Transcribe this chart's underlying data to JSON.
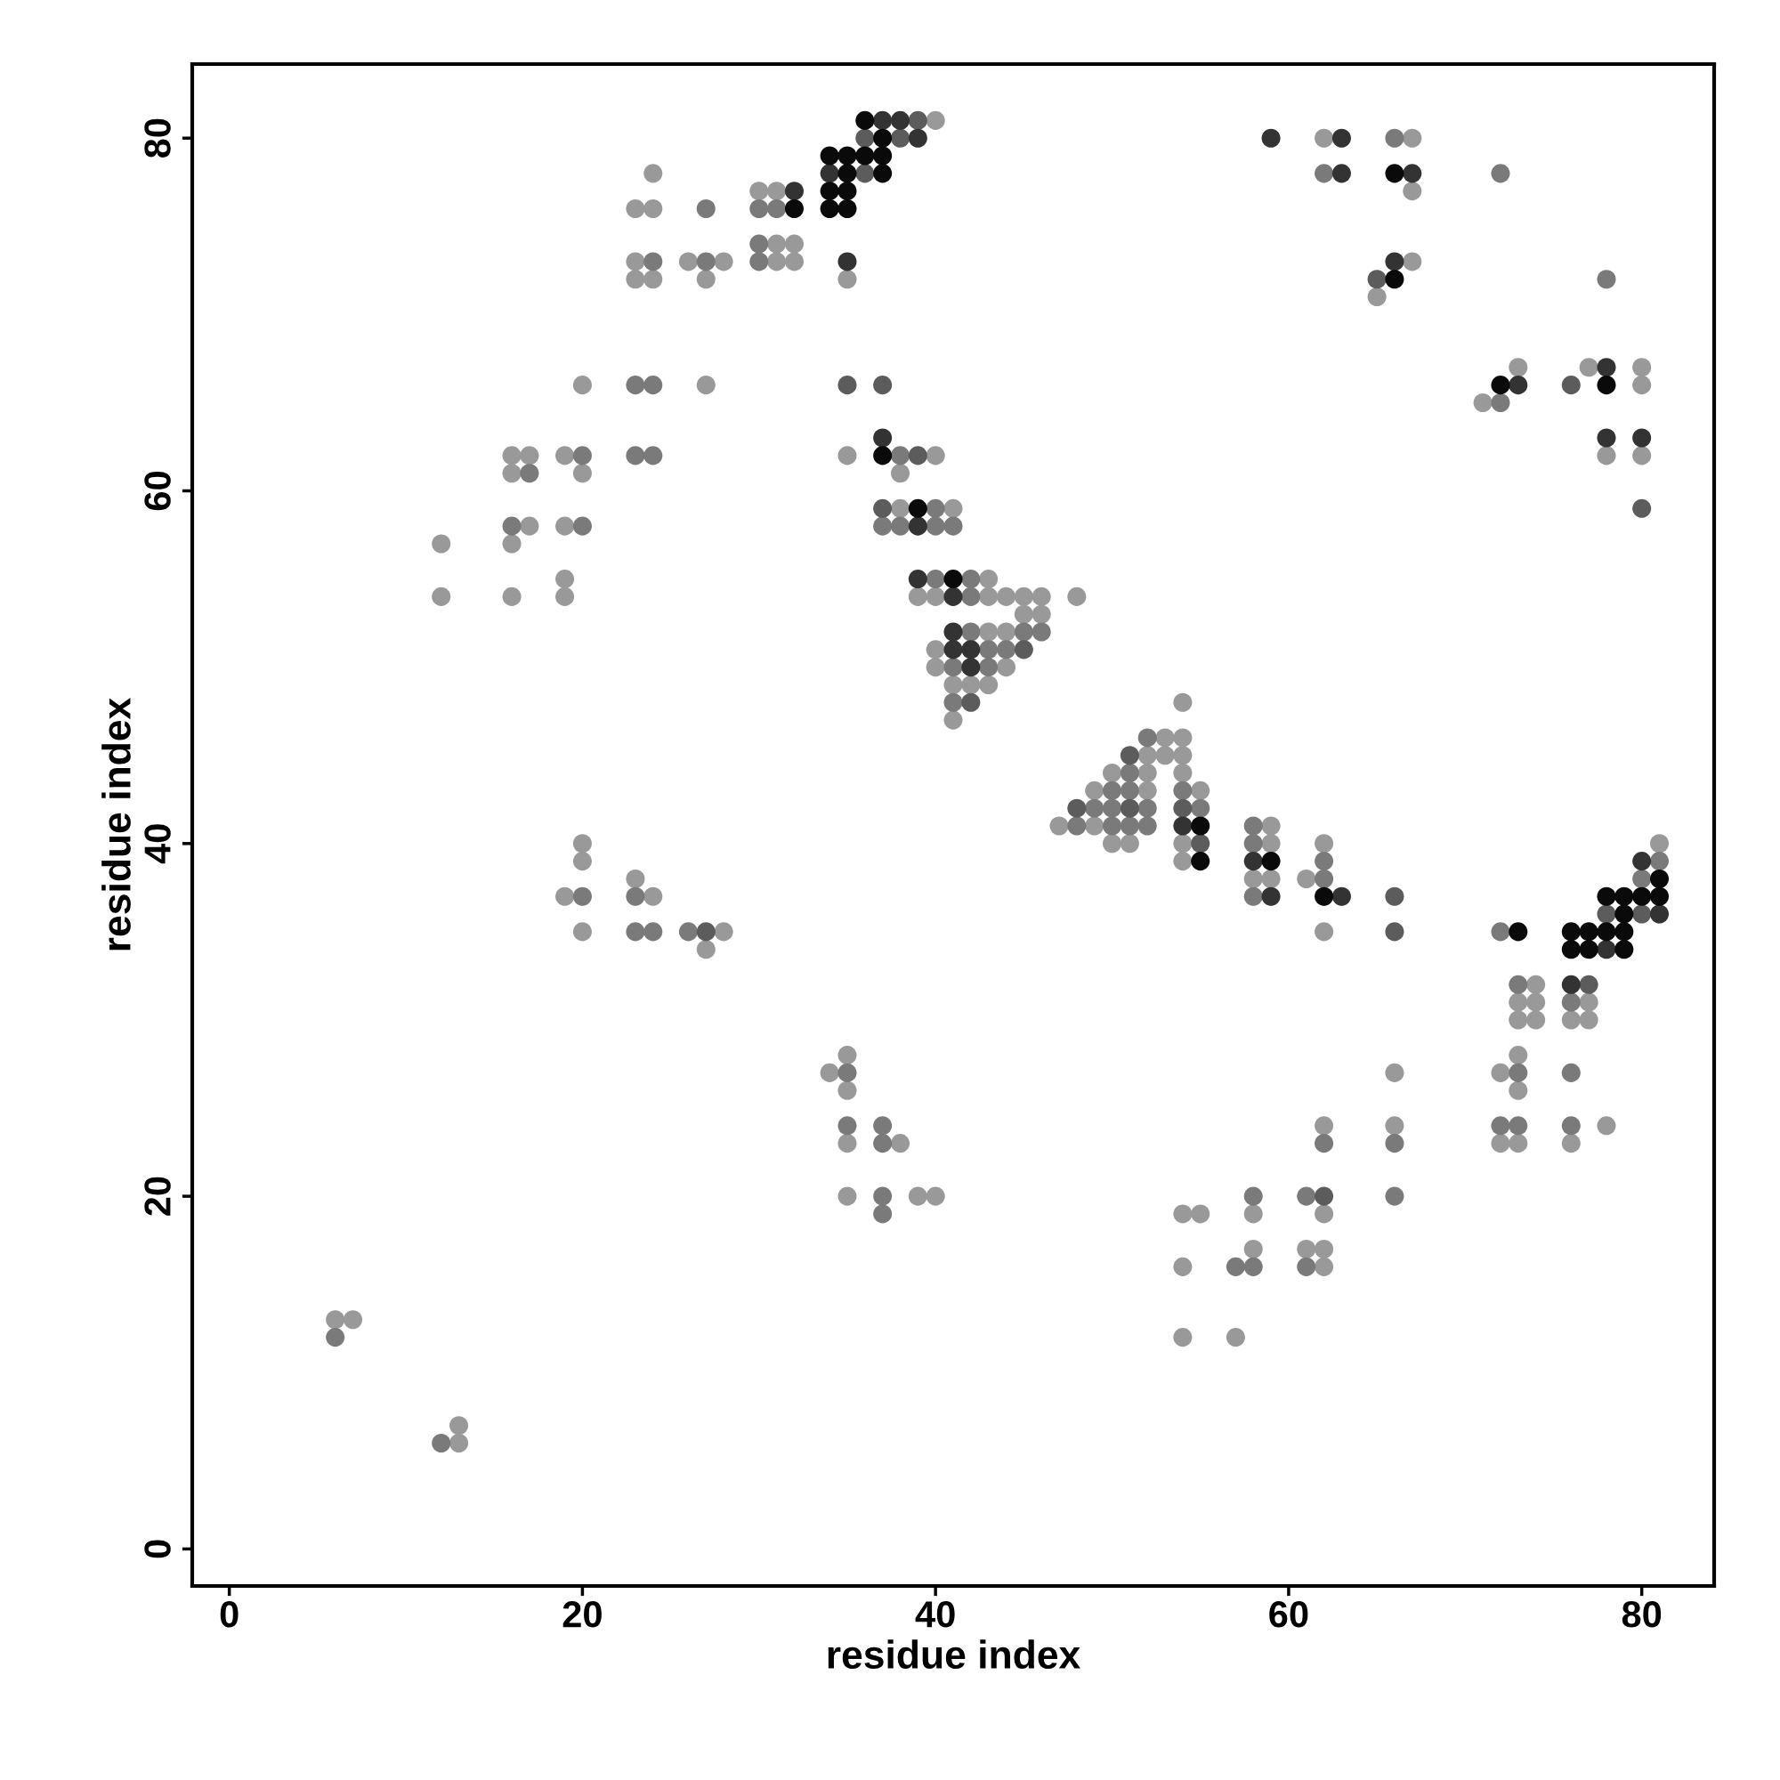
{
  "chart_data": {
    "type": "scatter",
    "xlabel": "residue index",
    "ylabel": "residue index",
    "xlim": [
      -2.1,
      84.1
    ],
    "ylim": [
      -2.1,
      84.2
    ],
    "xticks": [
      0,
      20,
      40,
      60,
      80
    ],
    "yticks": [
      0,
      20,
      40,
      60,
      80
    ],
    "marker": "circle",
    "grid": false,
    "legend": false,
    "series": [
      {
        "color": "#999999",
        "x": [
          40,
          62,
          67,
          24,
          30,
          31,
          67,
          23,
          24,
          31,
          32,
          23,
          26,
          28,
          31,
          32,
          67,
          23,
          24,
          27,
          35,
          65,
          73,
          77,
          80,
          20,
          27,
          80,
          71,
          16,
          17,
          19,
          35,
          40,
          78,
          80,
          16,
          20,
          38,
          38,
          41,
          17,
          19,
          12,
          16,
          19,
          43,
          12,
          16,
          19,
          39,
          40,
          43,
          44,
          45,
          46,
          48,
          45,
          46,
          43,
          44,
          40,
          40,
          44,
          41,
          42,
          43,
          54,
          41,
          53,
          54,
          52,
          53,
          54,
          50,
          52,
          54,
          49,
          52,
          55,
          47,
          49,
          59,
          20,
          50,
          51,
          54,
          59,
          62,
          81,
          20,
          54,
          23,
          58,
          59,
          61,
          19,
          24,
          20,
          28,
          62,
          27,
          74,
          73,
          74,
          77,
          73,
          74,
          76,
          77,
          35,
          73,
          34,
          66,
          72,
          35,
          73,
          62,
          66,
          78,
          35,
          38,
          72,
          73,
          76,
          35,
          39,
          40,
          54,
          55,
          58,
          62,
          58,
          61,
          62,
          54,
          62,
          6,
          7,
          54,
          57,
          13,
          13
        ],
        "values": [
          81,
          80,
          80,
          78,
          77,
          77,
          77,
          76,
          76,
          74,
          74,
          73,
          73,
          73,
          73,
          73,
          73,
          72,
          72,
          72,
          72,
          71,
          67,
          67,
          67,
          66,
          66,
          66,
          65,
          62,
          62,
          62,
          62,
          62,
          62,
          62,
          61,
          61,
          61,
          59,
          59,
          58,
          58,
          57,
          57,
          55,
          55,
          54,
          54,
          54,
          54,
          54,
          54,
          54,
          54,
          54,
          54,
          53,
          53,
          52,
          52,
          51,
          50,
          50,
          49,
          49,
          49,
          48,
          47,
          46,
          46,
          45,
          45,
          45,
          44,
          44,
          44,
          43,
          43,
          43,
          41,
          41,
          41,
          40,
          40,
          40,
          40,
          40,
          40,
          40,
          39,
          39,
          38,
          38,
          38,
          38,
          37,
          37,
          35,
          35,
          35,
          34,
          32,
          31,
          31,
          31,
          30,
          30,
          30,
          30,
          28,
          28,
          27,
          27,
          27,
          26,
          26,
          24,
          24,
          24,
          23,
          23,
          23,
          23,
          23,
          20,
          20,
          20,
          19,
          19,
          19,
          19,
          17,
          17,
          17,
          16,
          16,
          13,
          13,
          12,
          12,
          7,
          6
        ]
      },
      {
        "color": "#7a7a7a",
        "x": [
          66,
          62,
          72,
          27,
          30,
          31,
          30,
          24,
          27,
          30,
          78,
          23,
          24,
          72,
          20,
          23,
          24,
          38,
          17,
          40,
          16,
          20,
          37,
          38,
          40,
          41,
          40,
          42,
          42,
          42,
          45,
          46,
          43,
          44,
          41,
          43,
          41,
          52,
          51,
          50,
          51,
          54,
          49,
          50,
          52,
          55,
          48,
          50,
          51,
          52,
          58,
          58,
          62,
          81,
          62,
          80,
          20,
          23,
          58,
          23,
          24,
          26,
          72,
          73,
          76,
          35,
          73,
          76,
          35,
          37,
          72,
          73,
          76,
          37,
          62,
          66,
          37,
          58,
          61,
          66,
          37,
          57,
          58,
          61,
          6,
          12
        ],
        "values": [
          80,
          78,
          78,
          76,
          76,
          76,
          74,
          73,
          73,
          73,
          72,
          66,
          66,
          65,
          62,
          62,
          62,
          62,
          61,
          59,
          58,
          58,
          58,
          58,
          58,
          58,
          55,
          55,
          54,
          52,
          52,
          52,
          51,
          51,
          50,
          50,
          48,
          46,
          44,
          43,
          43,
          43,
          42,
          42,
          42,
          42,
          41,
          41,
          41,
          41,
          41,
          40,
          39,
          39,
          38,
          38,
          37,
          37,
          37,
          35,
          35,
          35,
          35,
          32,
          31,
          27,
          27,
          27,
          24,
          24,
          24,
          24,
          24,
          23,
          23,
          23,
          20,
          20,
          20,
          20,
          19,
          16,
          16,
          16,
          12,
          6
        ]
      },
      {
        "color": "#5c5c5c",
        "x": [
          39,
          36,
          38,
          36,
          65,
          35,
          37,
          76,
          39,
          37,
          80,
          45,
          42,
          51,
          48,
          51,
          54,
          55,
          66,
          78,
          80,
          27,
          66,
          77,
          62
        ],
        "values": [
          81,
          80,
          80,
          78,
          72,
          66,
          66,
          66,
          62,
          59,
          59,
          51,
          48,
          45,
          42,
          42,
          42,
          40,
          37,
          36,
          36,
          35,
          35,
          32,
          20
        ]
      },
      {
        "color": "#333333",
        "x": [
          37,
          38,
          39,
          59,
          63,
          34,
          63,
          67,
          32,
          35,
          66,
          78,
          73,
          37,
          78,
          80,
          39,
          39,
          41,
          41,
          41,
          42,
          42,
          54,
          58,
          80,
          59,
          63,
          81,
          78,
          76
        ],
        "values": [
          81,
          81,
          80,
          80,
          80,
          78,
          78,
          78,
          77,
          73,
          73,
          67,
          66,
          63,
          63,
          63,
          58,
          55,
          54,
          52,
          51,
          51,
          50,
          41,
          39,
          39,
          37,
          37,
          36,
          34,
          32
        ]
      },
      {
        "color": "#0a0a0a",
        "x": [
          36,
          37,
          34,
          35,
          36,
          37,
          35,
          37,
          66,
          34,
          35,
          32,
          34,
          35,
          66,
          72,
          78,
          37,
          39,
          41,
          55,
          55,
          59,
          81,
          62,
          78,
          79,
          80,
          81,
          79,
          73,
          76,
          77,
          78,
          79,
          76,
          77,
          79
        ],
        "values": [
          81,
          80,
          79,
          79,
          79,
          79,
          78,
          78,
          78,
          77,
          77,
          76,
          76,
          76,
          72,
          66,
          66,
          62,
          59,
          55,
          41,
          39,
          39,
          38,
          37,
          37,
          37,
          37,
          37,
          36,
          35,
          35,
          35,
          35,
          35,
          34,
          34,
          34
        ]
      }
    ]
  }
}
